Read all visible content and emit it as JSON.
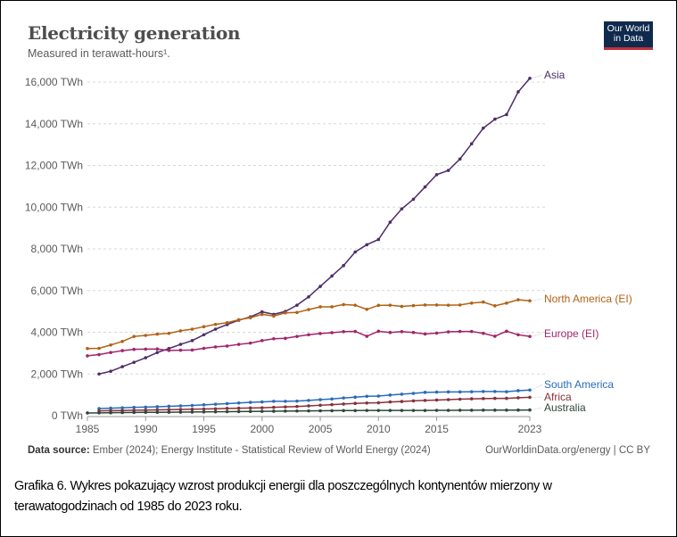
{
  "chart_data": {
    "type": "line",
    "title": "Electricity generation",
    "subtitle": "Measured in terawatt-hours¹.",
    "xlabel": "",
    "ylabel": "",
    "x_range": [
      1985,
      2023
    ],
    "ylim": [
      0,
      16000
    ],
    "grid": "horizontal dashed",
    "y_ticks": [
      {
        "value": 0,
        "label": "0 TWh"
      },
      {
        "value": 2000,
        "label": "2,000 TWh"
      },
      {
        "value": 4000,
        "label": "4,000 TWh"
      },
      {
        "value": 6000,
        "label": "6,000 TWh"
      },
      {
        "value": 8000,
        "label": "8,000 TWh"
      },
      {
        "value": 10000,
        "label": "10,000 TWh"
      },
      {
        "value": 12000,
        "label": "12,000 TWh"
      },
      {
        "value": 14000,
        "label": "14,000 TWh"
      },
      {
        "value": 16000,
        "label": "16,000 TWh"
      }
    ],
    "x_ticks": [
      {
        "value": 1985,
        "label": "1985"
      },
      {
        "value": 1990,
        "label": "1990"
      },
      {
        "value": 1995,
        "label": "1995"
      },
      {
        "value": 2000,
        "label": "2000"
      },
      {
        "value": 2005,
        "label": "2005"
      },
      {
        "value": 2010,
        "label": "2010"
      },
      {
        "value": 2015,
        "label": "2015"
      },
      {
        "value": 2023,
        "label": "2023"
      }
    ],
    "legend": "direct labels at line ends (right)",
    "x": [
      1985,
      1986,
      1987,
      1988,
      1989,
      1990,
      1991,
      1992,
      1993,
      1994,
      1995,
      1996,
      1997,
      1998,
      1999,
      2000,
      2001,
      2002,
      2003,
      2004,
      2005,
      2006,
      2007,
      2008,
      2009,
      2010,
      2011,
      2012,
      2013,
      2014,
      2015,
      2016,
      2017,
      2018,
      2019,
      2020,
      2021,
      2022,
      2023
    ],
    "series": [
      {
        "name": "Asia",
        "color": "#4c2c69",
        "values": [
          2000,
          2130,
          2350,
          2560,
          2780,
          3030,
          3220,
          3420,
          3600,
          3880,
          4150,
          4370,
          4580,
          4740,
          4980,
          4860,
          5000,
          5300,
          5700,
          6200,
          6700,
          7200,
          7850,
          8200,
          8450,
          9280,
          9920,
          10380,
          10970,
          11560,
          11760,
          12310,
          13040,
          13790,
          14220,
          14440,
          15530,
          16180,
          null
        ],
        "label_year": 2023
      },
      {
        "name": "North America (EI)",
        "color": "#b16214",
        "values": [
          3220,
          3230,
          3390,
          3560,
          3800,
          3850,
          3910,
          3950,
          4070,
          4150,
          4270,
          4380,
          4460,
          4600,
          4700,
          4860,
          4780,
          4930,
          4950,
          5090,
          5220,
          5220,
          5330,
          5300,
          5100,
          5290,
          5300,
          5240,
          5280,
          5310,
          5310,
          5300,
          5310,
          5400,
          5450,
          5270,
          5400,
          5560,
          5510
        ]
      },
      {
        "name": "Europe (EI)",
        "color": "#a2246a",
        "values": [
          2870,
          2930,
          3030,
          3120,
          3180,
          3190,
          3200,
          3130,
          3140,
          3150,
          3230,
          3300,
          3340,
          3420,
          3480,
          3600,
          3690,
          3710,
          3800,
          3880,
          3940,
          3980,
          4030,
          4040,
          3810,
          4050,
          3990,
          4030,
          3990,
          3920,
          3960,
          4020,
          4040,
          4040,
          3950,
          3810,
          4050,
          3880,
          3800
        ]
      },
      {
        "name": "South America",
        "color": "#286bbb",
        "values": [
          340,
          360,
          380,
          400,
          410,
          430,
          450,
          470,
          490,
          520,
          550,
          580,
          610,
          640,
          660,
          690,
          690,
          700,
          730,
          770,
          800,
          850,
          890,
          930,
          940,
          990,
          1030,
          1070,
          1120,
          1130,
          1140,
          1140,
          1150,
          1160,
          1160,
          1150,
          1200,
          1230,
          null
        ]
      },
      {
        "name": "Africa",
        "color": "#883039",
        "values": [
          230,
          240,
          250,
          260,
          270,
          280,
          290,
          300,
          310,
          320,
          330,
          350,
          360,
          370,
          380,
          400,
          420,
          440,
          470,
          500,
          530,
          560,
          590,
          610,
          620,
          660,
          680,
          710,
          730,
          750,
          770,
          790,
          810,
          820,
          830,
          830,
          860,
          880,
          null
        ]
      },
      {
        "name": "Australia",
        "color": "#2d4739",
        "values": [
          130,
          135,
          140,
          150,
          155,
          160,
          160,
          165,
          170,
          175,
          180,
          185,
          190,
          200,
          205,
          210,
          215,
          220,
          225,
          230,
          235,
          240,
          245,
          245,
          250,
          250,
          250,
          250,
          250,
          250,
          255,
          255,
          260,
          260,
          265,
          265,
          265,
          270,
          275
        ]
      }
    ]
  },
  "header": {
    "title": "Electricity generation",
    "subtitle": "Measured in terawatt-hours¹.",
    "logo_line1": "Our World",
    "logo_line2": "in Data"
  },
  "footer": {
    "source_label": "Data source:",
    "source_text": " Ember (2024); Energy Institute - Statistical Review of World Energy (2024)",
    "credit": "OurWorldinData.org/energy | CC BY"
  },
  "caption": "Grafika 6. Wykres pokazujący wzrost produkcji energii dla poszczególnych kontynentów mierzony w terawatogodzinach od 1985 do 2023 roku."
}
